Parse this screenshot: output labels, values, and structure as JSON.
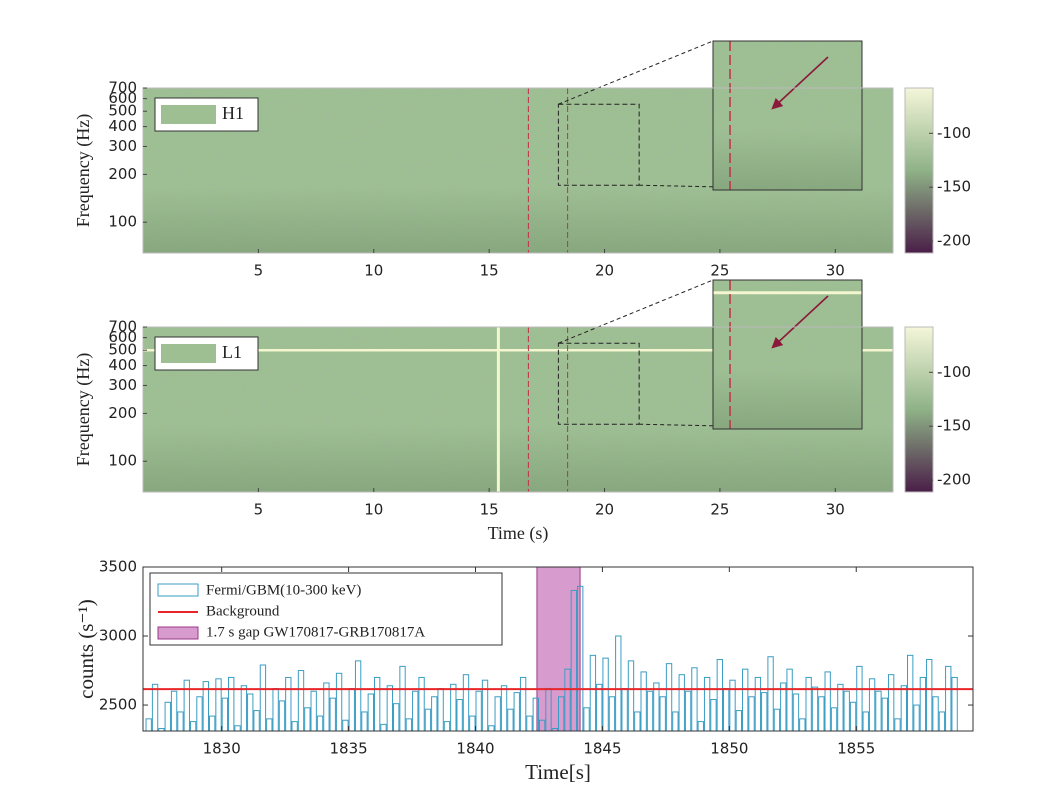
{
  "chart_data": [
    {
      "type": "spectrogram",
      "legend": "H1",
      "ylabel": "Frequency (Hz)",
      "xlim": [
        0,
        32.5
      ],
      "xticks": [
        5,
        10,
        15,
        20,
        25,
        30
      ],
      "ylim": [
        64,
        700
      ],
      "yticks": [
        100,
        200,
        300,
        400,
        500,
        600,
        700
      ],
      "log_y": true,
      "clim": [
        -211,
        -58
      ],
      "cticks": [
        -200,
        -150,
        -100
      ],
      "colormap": [
        "#4a1e48",
        "#8fb287",
        "#f4f6d9"
      ],
      "markers": [
        16.7,
        18.4
      ],
      "inset_xlim": [
        18.0,
        21.5
      ],
      "inset_ylim": [
        171,
        553
      ]
    },
    {
      "type": "spectrogram",
      "legend": "L1",
      "ylabel": "Frequency (Hz)",
      "xlabel": "Time (s)",
      "xlim": [
        0,
        32.5
      ],
      "xticks": [
        5,
        10,
        15,
        20,
        25,
        30
      ],
      "ylim": [
        64,
        700
      ],
      "yticks": [
        100,
        200,
        300,
        400,
        500,
        600,
        700
      ],
      "log_y": true,
      "clim": [
        -211,
        -58
      ],
      "cticks": [
        -200,
        -150,
        -100
      ],
      "colormap": [
        "#4a1e48",
        "#8fb287",
        "#f4f6d9"
      ],
      "markers": [
        16.7,
        18.4
      ],
      "inset_xlim": [
        18.0,
        21.5
      ],
      "inset_ylim": [
        171,
        553
      ],
      "glitch_time": 15.4,
      "line_frequency": 500
    },
    {
      "type": "histogram",
      "name": "Fermi/GBM(10-300 keV)",
      "color": "#3a9dc4",
      "xlabel": "Time[s]",
      "ylabel": "counts (s⁻¹)",
      "xlim": [
        1826.9,
        1859.6
      ],
      "xticks": [
        1830,
        1835,
        1840,
        1845,
        1850,
        1855
      ],
      "ylim": [
        2312,
        3500
      ],
      "yticks": [
        2500,
        3000,
        3500
      ],
      "background": {
        "name": "Background",
        "value": 2615,
        "color": "#e8262a"
      },
      "gap": {
        "name": "1.7 s gap GW170817-GRB170817A",
        "range": [
          1842.42,
          1844.12
        ],
        "color": "#c870b8"
      },
      "bins": [
        1827,
        1827.25,
        1827.5,
        1827.75,
        1828,
        1828.25,
        1828.5,
        1828.75,
        1829,
        1829.25,
        1829.5,
        1829.75,
        1830,
        1830.25,
        1830.5,
        1830.75,
        1831,
        1831.25,
        1831.5,
        1831.75,
        1832,
        1832.25,
        1832.5,
        1832.75,
        1833,
        1833.25,
        1833.5,
        1833.75,
        1834,
        1834.25,
        1834.5,
        1834.75,
        1835,
        1835.25,
        1835.5,
        1835.75,
        1836,
        1836.25,
        1836.5,
        1836.75,
        1837,
        1837.25,
        1837.5,
        1837.75,
        1838,
        1838.25,
        1838.5,
        1838.75,
        1839,
        1839.25,
        1839.5,
        1839.75,
        1840,
        1840.25,
        1840.5,
        1840.75,
        1841,
        1841.25,
        1841.5,
        1841.75,
        1842,
        1842.25,
        1842.5,
        1842.75,
        1843,
        1843.25,
        1843.5,
        1843.75,
        1844,
        1844.25,
        1844.5,
        1844.75,
        1845,
        1845.25,
        1845.5,
        1845.75,
        1846,
        1846.25,
        1846.5,
        1846.75,
        1847,
        1847.25,
        1847.5,
        1847.75,
        1848,
        1848.25,
        1848.5,
        1848.75,
        1849,
        1849.25,
        1849.5,
        1849.75,
        1850,
        1850.25,
        1850.5,
        1850.75,
        1851,
        1851.25,
        1851.5,
        1851.75,
        1852,
        1852.25,
        1852.5,
        1852.75,
        1853,
        1853.25,
        1853.5,
        1853.75,
        1854,
        1854.25,
        1854.5,
        1854.75,
        1855,
        1855.25,
        1855.5,
        1855.75,
        1856,
        1856.25,
        1856.5,
        1856.75,
        1857,
        1857.25,
        1857.5,
        1857.75,
        1858,
        1858.25,
        1858.5,
        1858.75,
        1859
      ],
      "values": [
        2400,
        2650,
        2330,
        2520,
        2600,
        2450,
        2680,
        2380,
        2560,
        2670,
        2420,
        2690,
        2550,
        2700,
        2350,
        2640,
        2580,
        2460,
        2790,
        2400,
        2620,
        2530,
        2700,
        2380,
        2750,
        2480,
        2600,
        2420,
        2660,
        2550,
        2730,
        2390,
        2620,
        2820,
        2450,
        2580,
        2700,
        2360,
        2640,
        2510,
        2780,
        2400,
        2600,
        2700,
        2470,
        2560,
        2620,
        2380,
        2650,
        2540,
        2720,
        2420,
        2600,
        2680,
        2350,
        2560,
        2640,
        2470,
        2590,
        2700,
        2420,
        2550,
        2390,
        2620,
        2330,
        2560,
        2760,
        3330,
        3360,
        2480,
        2860,
        2650,
        2840,
        2560,
        3000,
        2620,
        2820,
        2450,
        2740,
        2600,
        2660,
        2560,
        2800,
        2450,
        2720,
        2600,
        2770,
        2380,
        2700,
        2540,
        2830,
        2620,
        2680,
        2460,
        2760,
        2560,
        2700,
        2590,
        2850,
        2470,
        2660,
        2760,
        2580,
        2400,
        2700,
        2630,
        2560,
        2740,
        2480,
        2650,
        2600,
        2520,
        2780,
        2450,
        2690,
        2600,
        2550,
        2720,
        2400,
        2640,
        2860,
        2500,
        2700,
        2830,
        2560,
        2450,
        2780,
        2700
      ]
    }
  ]
}
